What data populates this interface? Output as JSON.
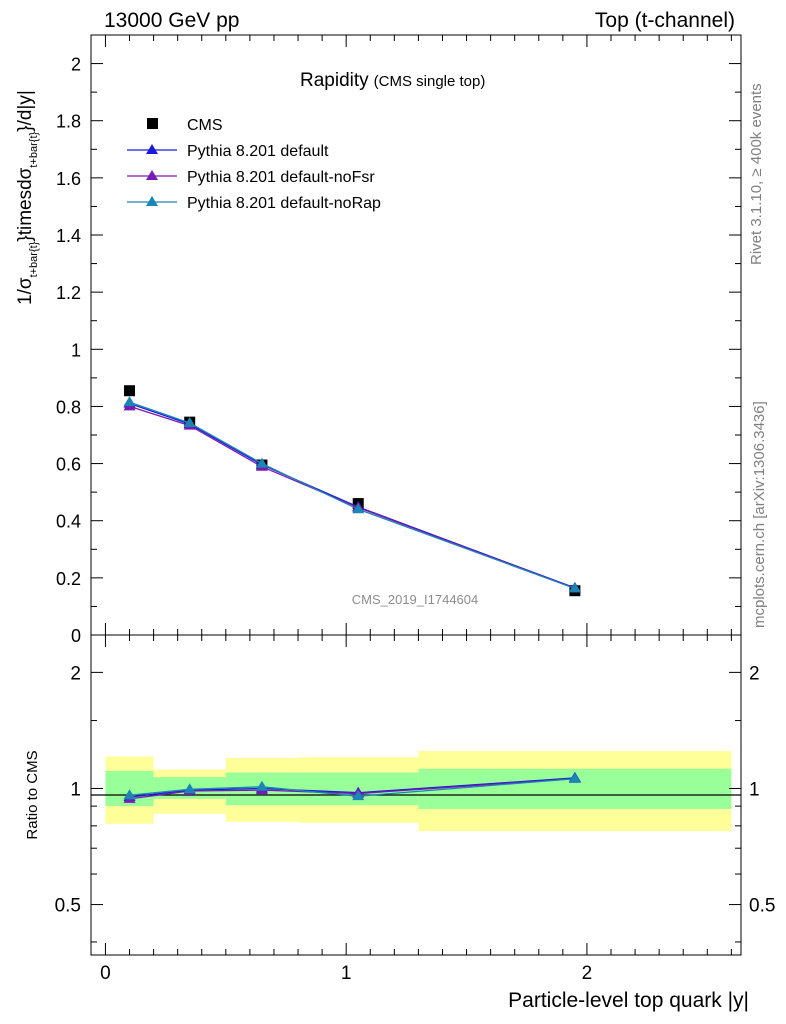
{
  "header": {
    "left": "13000 GeV pp",
    "right": "Top (t-channel)"
  },
  "side_labels": {
    "rivet": "Rivet 3.1.10, ≥ 400k events",
    "mcplots": "mcplots.cern.ch [arXiv:1306.3436]"
  },
  "main_panel": {
    "title": "Rapidity",
    "subtitle": "(CMS single top)",
    "ylabel": "1/σ_{t+bar{t}}timesdσ_{t+bar{t}}/d|y|",
    "watermark": "CMS_2019_I1744604",
    "y_ticks": [
      "0",
      "0.2",
      "0.4",
      "0.6",
      "0.8",
      "1",
      "1.2",
      "1.4",
      "1.6",
      "1.8",
      "2"
    ]
  },
  "ratio_panel": {
    "ylabel": "Ratio to CMS",
    "y_ticks_left": [
      "0.5",
      "1",
      "2"
    ],
    "y_ticks_right": [
      "0.5",
      "1",
      "2"
    ]
  },
  "x_axis": {
    "label": "Particle-level top quark |y|",
    "ticks": [
      "0",
      "1",
      "2"
    ]
  },
  "legend": [
    "CMS",
    "Pythia 8.201 default",
    "Pythia 8.201 default-noFsr",
    "Pythia 8.201 default-noRap"
  ],
  "colors": {
    "cms": "#000000",
    "default": "#1a1ad6",
    "noFsr": "#7a1ab4",
    "noRap": "#1a86b4",
    "band_inner": "#99ff99",
    "band_outer": "#ffff99"
  },
  "chart_data": [
    {
      "type": "scatter",
      "title": "Rapidity",
      "xlabel": "Particle-level top quark |y|",
      "ylabel": "1/σ_{t+bar{t}}timesdσ_{t+bar{t}}/d|y|",
      "xlim": [
        -0.06,
        2.64
      ],
      "ylim": [
        0,
        2.1
      ],
      "bin_edges": [
        0,
        0.2,
        0.5,
        0.8,
        1.3,
        2.6
      ],
      "x": [
        0.1,
        0.35,
        0.65,
        1.05,
        1.95
      ],
      "series": [
        {
          "name": "CMS",
          "marker": "square",
          "values": [
            0.855,
            0.745,
            0.595,
            0.46,
            0.155
          ]
        },
        {
          "name": "Pythia 8.201 default",
          "marker": "triangle",
          "values": [
            0.81,
            0.738,
            0.596,
            0.448,
            0.165
          ]
        },
        {
          "name": "Pythia 8.201 default-noFsr",
          "marker": "triangle",
          "values": [
            0.8,
            0.733,
            0.589,
            0.446,
            0.163
          ]
        },
        {
          "name": "Pythia 8.201 default-noRap",
          "marker": "triangle",
          "values": [
            0.815,
            0.742,
            0.6,
            0.44,
            0.163
          ]
        }
      ],
      "legend_position": "top-left",
      "grid": false
    },
    {
      "type": "line",
      "ylabel": "Ratio to CMS",
      "xlim": [
        -0.06,
        2.64
      ],
      "ylim": [
        0.37,
        2.5
      ],
      "y_scale": "log",
      "bin_edges": [
        0,
        0.2,
        0.5,
        0.8,
        1.3,
        2.6
      ],
      "band_inner": [
        [
          0.9,
          1.11
        ],
        [
          0.94,
          1.07
        ],
        [
          0.905,
          1.1
        ],
        [
          0.905,
          1.1
        ],
        [
          0.885,
          1.125
        ]
      ],
      "band_outer": [
        [
          0.81,
          1.21
        ],
        [
          0.86,
          1.12
        ],
        [
          0.82,
          1.2
        ],
        [
          0.815,
          1.205
        ],
        [
          0.775,
          1.25
        ]
      ],
      "x": [
        0.1,
        0.35,
        0.65,
        1.05,
        1.95
      ],
      "series": [
        {
          "name": "Pythia 8.201 default",
          "values": [
            0.95,
            0.99,
            1.0,
            0.975,
            1.065
          ]
        },
        {
          "name": "Pythia 8.201 default-noFsr",
          "values": [
            0.94,
            0.985,
            0.99,
            0.97,
            1.06
          ]
        },
        {
          "name": "Pythia 8.201 default-noRap",
          "values": [
            0.96,
            0.995,
            1.01,
            0.955,
            1.06
          ]
        }
      ]
    }
  ]
}
